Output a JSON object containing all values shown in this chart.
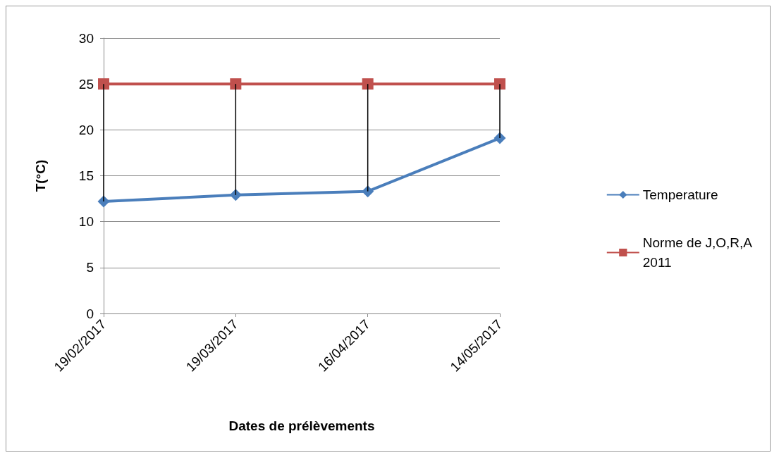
{
  "chart_data": {
    "type": "line",
    "xlabel": "Dates de prélèvements",
    "ylabel": "T(°C)",
    "categories": [
      "19/02/2017",
      "19/03/2017",
      "16/04/2017",
      "14/05/2017"
    ],
    "series": [
      {
        "name": "Temperature",
        "color": "#4a7ebb",
        "marker": "diamond",
        "values": [
          12.2,
          12.9,
          13.3,
          19.1
        ],
        "errors": [
          [
            12.2,
            25
          ],
          [
            12.9,
            25
          ],
          [
            13.3,
            25
          ],
          [
            19.1,
            25
          ]
        ]
      },
      {
        "name": "Norme de J,O,R,A\n2011",
        "color": "#c0504d",
        "marker": "square",
        "values": [
          25,
          25,
          25,
          25
        ]
      }
    ],
    "ylim": [
      0,
      30
    ],
    "yticks": [
      0,
      5,
      10,
      15,
      20,
      25,
      30
    ],
    "grid": "y",
    "legend": "right"
  }
}
